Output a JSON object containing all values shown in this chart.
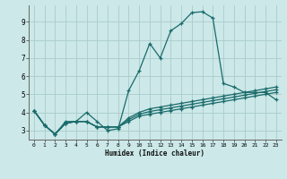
{
  "title": "",
  "xlabel": "Humidex (Indice chaleur)",
  "ylabel": "",
  "background_color": "#cce8e8",
  "grid_color": "#aacccc",
  "line_color": "#1a6b6b",
  "xlim": [
    -0.5,
    23.5
  ],
  "ylim": [
    2.5,
    9.9
  ],
  "xticks": [
    0,
    1,
    2,
    3,
    4,
    5,
    6,
    7,
    8,
    9,
    10,
    11,
    12,
    13,
    14,
    15,
    16,
    17,
    18,
    19,
    20,
    21,
    22,
    23
  ],
  "yticks": [
    3,
    4,
    5,
    6,
    7,
    8,
    9
  ],
  "series": [
    [
      4.1,
      3.3,
      2.8,
      3.5,
      3.5,
      4.0,
      3.5,
      3.0,
      3.1,
      5.2,
      6.3,
      7.8,
      7.0,
      8.5,
      8.9,
      9.5,
      9.55,
      9.2,
      5.6,
      5.4,
      5.1,
      5.1,
      5.1,
      4.7
    ],
    [
      4.1,
      3.3,
      2.8,
      3.4,
      3.5,
      3.5,
      3.2,
      3.2,
      3.2,
      3.5,
      3.8,
      3.9,
      4.0,
      4.1,
      4.2,
      4.3,
      4.4,
      4.5,
      4.6,
      4.7,
      4.8,
      4.9,
      5.0,
      5.1
    ],
    [
      4.1,
      3.3,
      2.8,
      3.4,
      3.5,
      3.5,
      3.2,
      3.2,
      3.2,
      3.6,
      3.9,
      4.05,
      4.15,
      4.25,
      4.35,
      4.45,
      4.55,
      4.65,
      4.75,
      4.85,
      4.95,
      5.05,
      5.15,
      5.25
    ],
    [
      4.1,
      3.3,
      2.8,
      3.4,
      3.5,
      3.5,
      3.2,
      3.2,
      3.2,
      3.7,
      4.0,
      4.2,
      4.3,
      4.4,
      4.5,
      4.6,
      4.7,
      4.8,
      4.9,
      5.0,
      5.1,
      5.2,
      5.3,
      5.4
    ]
  ]
}
